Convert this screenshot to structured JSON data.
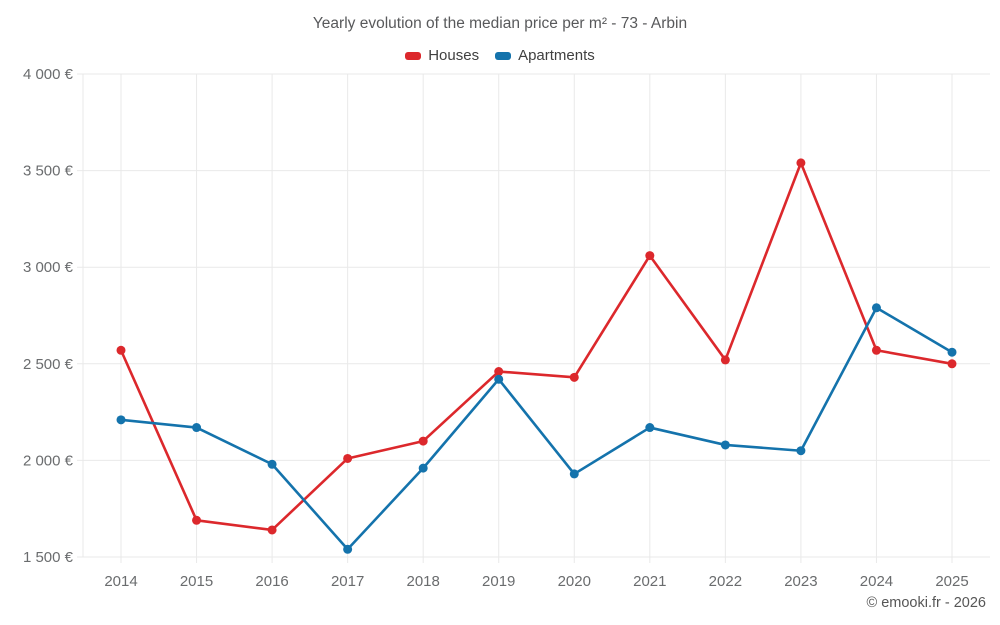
{
  "title": "Yearly evolution of the median price per m² - 73 - Arbin",
  "legend": {
    "items": [
      {
        "label": "Houses",
        "color": "#dc282c"
      },
      {
        "label": "Apartments",
        "color": "#1473ac"
      }
    ]
  },
  "footer": {
    "credit": "© emooki.fr - 2026"
  },
  "colors": {
    "houses": "#dc282c",
    "apartments": "#1473ac",
    "grid": "#e9e9e9",
    "tick_text": "#6a6c6e",
    "title_text": "#58595b",
    "background": "#ffffff"
  },
  "chart_data": {
    "type": "line",
    "title": "Yearly evolution of the median price per m² - 73 - Arbin",
    "categories": [
      "2014",
      "2015",
      "2016",
      "2017",
      "2018",
      "2019",
      "2020",
      "2021",
      "2022",
      "2023",
      "2024",
      "2025"
    ],
    "series": [
      {
        "name": "Houses",
        "color": "#dc282c",
        "values": [
          2570,
          1690,
          1640,
          2010,
          2100,
          2460,
          2430,
          3060,
          2520,
          3540,
          2570,
          2500
        ]
      },
      {
        "name": "Apartments",
        "color": "#1473ac",
        "values": [
          2210,
          2170,
          1980,
          1540,
          1960,
          2420,
          1930,
          2170,
          2080,
          2050,
          2790,
          2560
        ]
      }
    ],
    "xlabel": "",
    "ylabel": "",
    "ylim": [
      1500,
      4000
    ],
    "ytick_step": 500,
    "ytick_suffix": " €",
    "grid": true,
    "legend_position": "top",
    "marker": "circle"
  }
}
